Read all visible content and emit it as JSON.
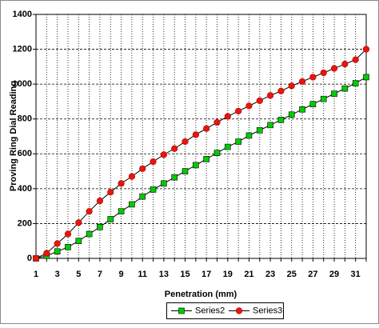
{
  "chart_data": {
    "type": "line",
    "x_label": "Penetration (mm)",
    "y_label": "Proving Ring Dial Reading",
    "categories": [
      1,
      null,
      3,
      null,
      5,
      null,
      7,
      null,
      9,
      null,
      11,
      null,
      13,
      null,
      15,
      null,
      17,
      null,
      19,
      null,
      21,
      null,
      23,
      null,
      25,
      null,
      27,
      null,
      29,
      null,
      31,
      null
    ],
    "series": [
      {
        "name": "Series2",
        "color": "#00cc00",
        "marker": "square",
        "values": [
          0,
          15,
          40,
          65,
          100,
          140,
          180,
          225,
          270,
          310,
          355,
          395,
          430,
          465,
          500,
          535,
          570,
          605,
          640,
          670,
          705,
          735,
          765,
          795,
          825,
          855,
          885,
          915,
          945,
          975,
          1005,
          1040
        ]
      },
      {
        "name": "Series3",
        "color": "#e8160c",
        "marker": "circle",
        "values": [
          0,
          30,
          85,
          140,
          205,
          270,
          330,
          380,
          430,
          470,
          515,
          555,
          595,
          630,
          670,
          710,
          745,
          780,
          815,
          845,
          875,
          905,
          935,
          960,
          990,
          1015,
          1040,
          1065,
          1090,
          1115,
          1140,
          1200
        ]
      }
    ],
    "ylim": [
      0,
      1400
    ],
    "yticks": [
      0,
      200,
      400,
      600,
      800,
      1000,
      1200,
      1400
    ],
    "grid": true,
    "legend": "bottom"
  }
}
